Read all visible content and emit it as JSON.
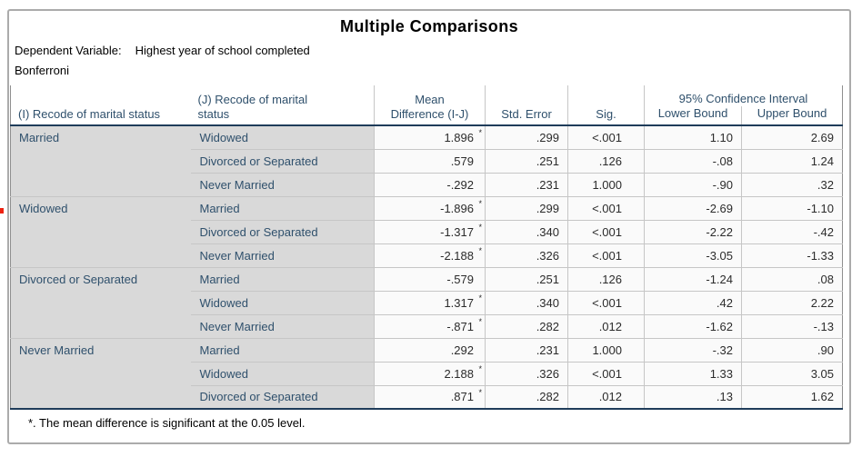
{
  "title": "Multiple Comparisons",
  "captions": {
    "dependent_variable_label": "Dependent Variable:",
    "dependent_variable_value": "Highest year of school completed",
    "method": "Bonferroni"
  },
  "table": {
    "columns": {
      "i": "(I) Recode of marital status",
      "j": "(J) Recode of marital\nstatus",
      "mean_diff": "Mean\nDifference (I-J)",
      "std_error": "Std. Error",
      "sig": "Sig.",
      "ci": "95% Confidence Interval",
      "lower": "Lower Bound",
      "upper": "Upper Bound"
    },
    "sig_marker": "*",
    "groups": [
      {
        "i_label": "Married",
        "rows": [
          {
            "j": "Widowed",
            "mean_diff": "1.896",
            "significant": true,
            "std_error": ".299",
            "sig": "<.001",
            "lower": "1.10",
            "upper": "2.69"
          },
          {
            "j": "Divorced or Separated",
            "mean_diff": ".579",
            "significant": false,
            "std_error": ".251",
            "sig": ".126",
            "lower": "-.08",
            "upper": "1.24"
          },
          {
            "j": "Never Married",
            "mean_diff": "-.292",
            "significant": false,
            "std_error": ".231",
            "sig": "1.000",
            "lower": "-.90",
            "upper": ".32"
          }
        ]
      },
      {
        "i_label": "Widowed",
        "rows": [
          {
            "j": "Married",
            "mean_diff": "-1.896",
            "significant": true,
            "std_error": ".299",
            "sig": "<.001",
            "lower": "-2.69",
            "upper": "-1.10"
          },
          {
            "j": "Divorced or Separated",
            "mean_diff": "-1.317",
            "significant": true,
            "std_error": ".340",
            "sig": "<.001",
            "lower": "-2.22",
            "upper": "-.42"
          },
          {
            "j": "Never Married",
            "mean_diff": "-2.188",
            "significant": true,
            "std_error": ".326",
            "sig": "<.001",
            "lower": "-3.05",
            "upper": "-1.33"
          }
        ]
      },
      {
        "i_label": "Divorced or Separated",
        "rows": [
          {
            "j": "Married",
            "mean_diff": "-.579",
            "significant": false,
            "std_error": ".251",
            "sig": ".126",
            "lower": "-1.24",
            "upper": ".08"
          },
          {
            "j": "Widowed",
            "mean_diff": "1.317",
            "significant": true,
            "std_error": ".340",
            "sig": "<.001",
            "lower": ".42",
            "upper": "2.22"
          },
          {
            "j": "Never Married",
            "mean_diff": "-.871",
            "significant": true,
            "std_error": ".282",
            "sig": ".012",
            "lower": "-1.62",
            "upper": "-.13"
          }
        ]
      },
      {
        "i_label": "Never Married",
        "rows": [
          {
            "j": "Married",
            "mean_diff": ".292",
            "significant": false,
            "std_error": ".231",
            "sig": "1.000",
            "lower": "-.32",
            "upper": ".90"
          },
          {
            "j": "Widowed",
            "mean_diff": "2.188",
            "significant": true,
            "std_error": ".326",
            "sig": "<.001",
            "lower": "1.33",
            "upper": "3.05"
          },
          {
            "j": "Divorced or Separated",
            "mean_diff": ".871",
            "significant": true,
            "std_error": ".282",
            "sig": ".012",
            "lower": ".13",
            "upper": "1.62"
          }
        ]
      }
    ]
  },
  "footnote": "*. The mean difference is significant at the 0.05 level.",
  "colors": {
    "header_text": "#2F506C",
    "data_text": "#2b2b2b",
    "label_bg": "#d9d9d9",
    "data_bg": "#fafafa",
    "gridline": "#c6c6c6",
    "heavy_border": "#1F3C5A",
    "side_border": "#8f8f8f",
    "frame_border": "#ababab",
    "red_marker": "#ee2211"
  }
}
